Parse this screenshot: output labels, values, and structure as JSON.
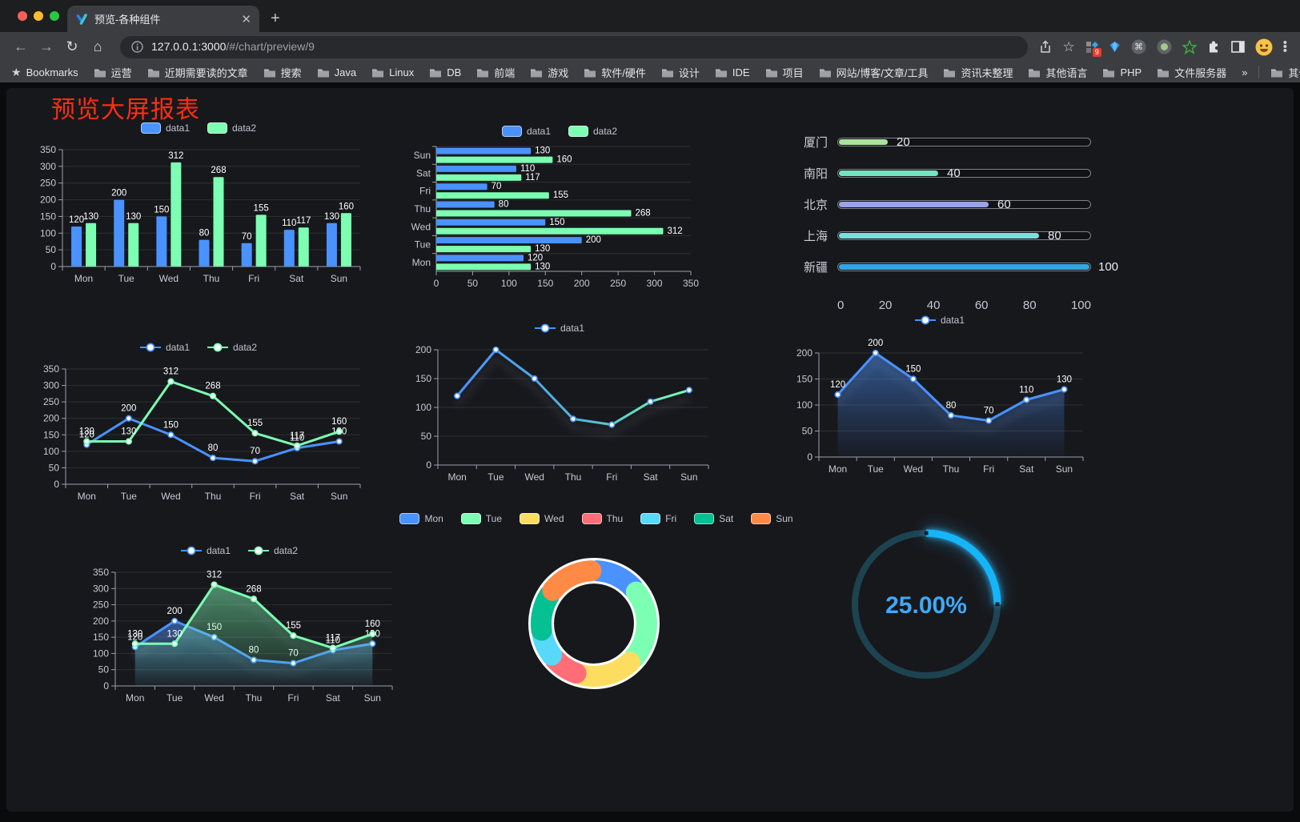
{
  "browser": {
    "tab_title": "预览-各种组件",
    "url_host": "127.0.0.1:3000",
    "url_path": "/#/chart/preview/9",
    "bookmarks_label": "Bookmarks",
    "bookmarks": [
      "运营",
      "近期需要读的文章",
      "搜索",
      "Java",
      "Linux",
      "DB",
      "前端",
      "游戏",
      "软件/硬件",
      "设计",
      "IDE",
      "项目",
      "网站/博客/文章/工具",
      "资讯未整理",
      "其他语言",
      "PHP",
      "文件服务器"
    ],
    "bookmarks_overflow": "»",
    "other_bookmarks_label": "其他书签",
    "extension_badge_count": "9"
  },
  "page": {
    "title": "预览大屏报表",
    "title_color": "#ff2d12",
    "panel_background": "#17181c"
  },
  "chart_data": [
    {
      "id": "grouped-bar",
      "type": "bar",
      "legend_position": "top",
      "grid": true,
      "show_labels": true,
      "categories": [
        "Mon",
        "Tue",
        "Wed",
        "Thu",
        "Fri",
        "Sat",
        "Sun"
      ],
      "series": [
        {
          "name": "data1",
          "color": "#4992ff",
          "values": [
            120,
            200,
            150,
            80,
            70,
            110,
            130
          ]
        },
        {
          "name": "data2",
          "color": "#7cffb2",
          "values": [
            130,
            130,
            312,
            268,
            155,
            117,
            160
          ]
        }
      ],
      "ylim": [
        0,
        350
      ],
      "ytick": 50
    },
    {
      "id": "horizontal-bar",
      "type": "bar",
      "orientation": "horizontal",
      "legend_position": "top",
      "grid": true,
      "show_labels": true,
      "display_order": "Sun-top",
      "categories": [
        "Mon",
        "Tue",
        "Wed",
        "Thu",
        "Fri",
        "Sat",
        "Sun"
      ],
      "series": [
        {
          "name": "data1",
          "color": "#4992ff",
          "values": [
            120,
            200,
            150,
            80,
            70,
            110,
            130
          ]
        },
        {
          "name": "data2",
          "color": "#7cffb2",
          "values": [
            130,
            130,
            312,
            268,
            155,
            117,
            160
          ]
        }
      ],
      "xlim": [
        0,
        350
      ],
      "xtick": 50
    },
    {
      "id": "city-progress",
      "type": "bar",
      "style": "progress-list",
      "items": [
        {
          "label": "厦门",
          "value": 20,
          "color": "#a9e49e"
        },
        {
          "label": "南阳",
          "value": 40,
          "color": "#74e4be"
        },
        {
          "label": "北京",
          "value": 60,
          "color": "#9aa3e6"
        },
        {
          "label": "上海",
          "value": 80,
          "color": "#79e0de"
        },
        {
          "label": "新疆",
          "value": 100,
          "color": "#35a5e2"
        }
      ],
      "xlim": [
        0,
        100
      ],
      "xticks": [
        0,
        20,
        40,
        60,
        80,
        100
      ]
    },
    {
      "id": "two-line",
      "type": "line",
      "legend_position": "top",
      "grid": true,
      "show_labels": true,
      "categories": [
        "Mon",
        "Tue",
        "Wed",
        "Thu",
        "Fri",
        "Sat",
        "Sun"
      ],
      "series": [
        {
          "name": "data1",
          "color": "#4992ff",
          "values": [
            120,
            200,
            150,
            80,
            70,
            110,
            130
          ]
        },
        {
          "name": "data2",
          "color": "#7cffb2",
          "values": [
            130,
            130,
            312,
            268,
            155,
            117,
            160
          ]
        }
      ],
      "ylim": [
        0,
        350
      ],
      "ytick": 50
    },
    {
      "id": "gradient-line",
      "type": "line",
      "legend_position": "top",
      "grid": true,
      "show_labels": false,
      "shadow": true,
      "gradient_stroke": true,
      "categories": [
        "Mon",
        "Tue",
        "Wed",
        "Thu",
        "Fri",
        "Sat",
        "Sun"
      ],
      "series": [
        {
          "name": "data1",
          "color": "#4992ff",
          "color_end": "#7cffb2",
          "values": [
            120,
            200,
            150,
            80,
            70,
            110,
            130
          ]
        }
      ],
      "ylim": [
        0,
        200
      ],
      "ytick": 50
    },
    {
      "id": "area-line",
      "type": "area",
      "legend_position": "top",
      "grid": true,
      "show_labels": true,
      "shadow": true,
      "categories": [
        "Mon",
        "Tue",
        "Wed",
        "Thu",
        "Fri",
        "Sat",
        "Sun"
      ],
      "series": [
        {
          "name": "data1",
          "color": "#4992ff",
          "values": [
            120,
            200,
            150,
            80,
            70,
            110,
            130
          ]
        }
      ],
      "ylim": [
        0,
        200
      ],
      "ytick": 50
    },
    {
      "id": "two-area-line",
      "type": "area",
      "legend_position": "top",
      "grid": true,
      "show_labels": true,
      "shadow": true,
      "categories": [
        "Mon",
        "Tue",
        "Wed",
        "Thu",
        "Fri",
        "Sat",
        "Sun"
      ],
      "series": [
        {
          "name": "data1",
          "color": "#4992ff",
          "values": [
            120,
            200,
            150,
            80,
            70,
            110,
            130
          ]
        },
        {
          "name": "data2",
          "color": "#7cffb2",
          "values": [
            130,
            130,
            312,
            268,
            155,
            117,
            160
          ]
        }
      ],
      "ylim": [
        0,
        350
      ],
      "ytick": 50
    },
    {
      "id": "donut",
      "type": "pie",
      "legend_position": "top",
      "inner_radius_ratio": 0.67,
      "categories": [
        "Mon",
        "Tue",
        "Wed",
        "Thu",
        "Fri",
        "Sat",
        "Sun"
      ],
      "values": [
        120,
        200,
        150,
        80,
        70,
        110,
        130
      ],
      "colors": [
        "#4992ff",
        "#7cffb2",
        "#fddd60",
        "#ff6e76",
        "#58d9f9",
        "#05c091",
        "#ff8a45"
      ]
    },
    {
      "id": "gauge",
      "type": "gauge",
      "value": 25,
      "max": 100,
      "display": "25.00%",
      "progress_color": "#14b6f8",
      "track_color": "#1d4350",
      "text_color": "#3fa9f7"
    }
  ]
}
